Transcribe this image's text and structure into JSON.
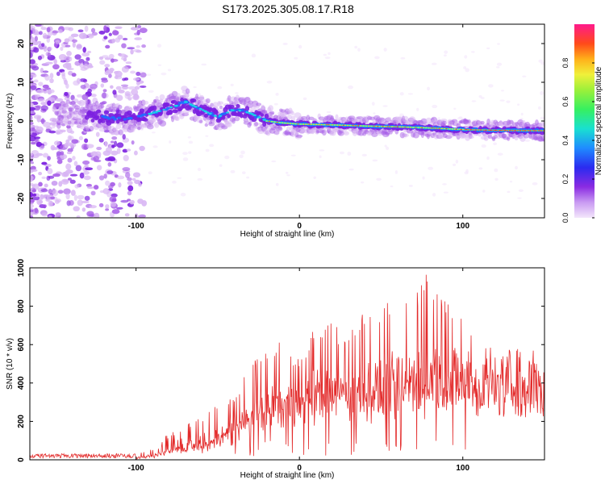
{
  "title": "S173.2025.305.08.17.R18",
  "colors": {
    "snr_line": "#e32a2a",
    "axis": "#000000",
    "spectrogram_cmap": [
      "#f3e6fb",
      "#d9b7f4",
      "#a860e8",
      "#7b1fe0",
      "#3a2bf0",
      "#1f6bff",
      "#19d9e6",
      "#3ff07a",
      "#c8f03c",
      "#ffd21a",
      "#ff7a1a",
      "#ff2d2d",
      "#ff1a8c"
    ]
  },
  "chart_data": [
    {
      "type": "heatmap",
      "title": "S173.2025.305.08.17.R18",
      "xlabel": "Height of straight line (km)",
      "ylabel": "Frequency (Hz)",
      "xlim": [
        -165,
        150
      ],
      "ylim": [
        -25,
        25
      ],
      "xticks": [
        -100,
        0,
        100
      ],
      "xtick_labels": [
        "-100",
        "0",
        "100"
      ],
      "yticks": [
        -20,
        -10,
        0,
        10,
        20
      ],
      "ytick_labels": [
        "-20",
        "-10",
        "0",
        "10",
        "20"
      ],
      "ridge": {
        "x": [
          -165,
          -130,
          -110,
          -90,
          -75,
          -70,
          -60,
          -50,
          -40,
          -30,
          -20,
          -10,
          0,
          20,
          40,
          60,
          80,
          100,
          120,
          150
        ],
        "y": [
          2,
          1.5,
          0.5,
          2,
          4,
          5,
          3,
          1,
          3,
          2,
          0,
          -0.5,
          -0.8,
          -1,
          -1.3,
          -1.5,
          -1.8,
          -2.2,
          -2.4,
          -2.5
        ]
      },
      "colorbar": {
        "label": "Normalized spectral amplitude",
        "range": [
          0,
          1
        ],
        "ticks": [
          0.0,
          0.2,
          0.4,
          0.6,
          0.8
        ],
        "tick_labels": [
          "0.0",
          "0.2",
          "0.4",
          "0.6",
          "0.8"
        ]
      }
    },
    {
      "type": "line",
      "xlabel": "Height of straight line (km)",
      "ylabel": "SNR (10 * v/v)",
      "xlim": [
        -165,
        150
      ],
      "ylim": [
        0,
        1000
      ],
      "xticks": [
        -100,
        0,
        100
      ],
      "xtick_labels": [
        "-100",
        "0",
        "100"
      ],
      "yticks": [
        0,
        200,
        400,
        600,
        800,
        1000
      ],
      "ytick_labels": [
        "0",
        "200",
        "400",
        "600",
        "800",
        "1000"
      ],
      "series": [
        {
          "name": "SNR",
          "envelope_x": [
            -165,
            -100,
            -90,
            -80,
            -60,
            -50,
            -40,
            -30,
            -20,
            -10,
            0,
            10,
            20,
            30,
            40,
            50,
            60,
            70,
            80,
            90,
            100,
            110,
            120,
            130,
            150
          ],
          "envelope_max": [
            25,
            30,
            60,
            140,
            220,
            290,
            360,
            490,
            600,
            620,
            520,
            700,
            720,
            640,
            800,
            780,
            880,
            870,
            1000,
            860,
            780,
            640,
            560,
            580,
            600
          ],
          "envelope_base": [
            5,
            8,
            15,
            30,
            60,
            90,
            130,
            200,
            250,
            280,
            300,
            330,
            340,
            340,
            360,
            370,
            390,
            400,
            410,
            420,
            430,
            440,
            440,
            440,
            440
          ]
        }
      ]
    }
  ]
}
